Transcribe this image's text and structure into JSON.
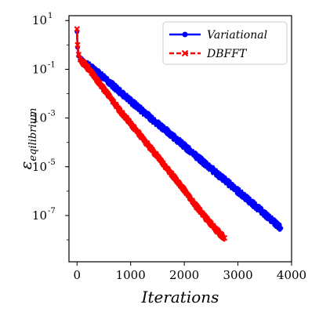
{
  "chart_data": {
    "type": "line",
    "title": "",
    "xlabel": "Iterations",
    "ylabel": "ε",
    "ylabel_sub": "eqilibrium",
    "xlim": [
      -150,
      4000
    ],
    "ylim_log10": [
      -8.9,
      1.2
    ],
    "yscale": "log",
    "grid": false,
    "legend_position": "top-right",
    "x_ticks": [
      {
        "value": 0,
        "label": "0"
      },
      {
        "value": 1000,
        "label": "1000"
      },
      {
        "value": 2000,
        "label": "2000"
      },
      {
        "value": 3000,
        "label": "3000"
      },
      {
        "value": 4000,
        "label": "4000"
      }
    ],
    "y_ticks": [
      {
        "exp": 1,
        "base": "10",
        "sup": "1"
      },
      {
        "exp": -1,
        "base": "10",
        "sup": "-1"
      },
      {
        "exp": -3,
        "base": "10",
        "sup": "-3"
      },
      {
        "exp": -5,
        "base": "10",
        "sup": "-5"
      },
      {
        "exp": -7,
        "base": "10",
        "sup": "-7"
      }
    ],
    "series": [
      {
        "name": "Variational",
        "color": "#0000ff",
        "marker": "circle",
        "linestyle": "solid",
        "x": [
          0,
          10,
          30,
          60,
          100,
          200,
          400,
          600,
          800,
          1000,
          1400,
          1800,
          2200,
          2600,
          3000,
          3400,
          3800
        ],
        "y": [
          3.5,
          0.8,
          0.35,
          0.25,
          0.2,
          0.15,
          0.07,
          0.03,
          0.012,
          0.005,
          0.0009,
          0.00017,
          3e-05,
          5.5e-06,
          1e-06,
          1.8e-07,
          3e-08
        ]
      },
      {
        "name": "DBFFT",
        "color": "#ff0000",
        "marker": "x",
        "linestyle": "dashed",
        "x": [
          0,
          10,
          30,
          60,
          100,
          200,
          400,
          600,
          800,
          1000,
          1200,
          1400,
          1600,
          1800,
          2000,
          2200,
          2400,
          2600,
          2750
        ],
        "y": [
          4.5,
          1.0,
          0.4,
          0.25,
          0.2,
          0.12,
          0.03,
          0.008,
          0.002,
          0.0006,
          0.00017,
          5e-05,
          1.4e-05,
          4e-06,
          1.1e-06,
          2.8e-07,
          8e-08,
          2.5e-08,
          1.2e-08
        ]
      }
    ]
  }
}
